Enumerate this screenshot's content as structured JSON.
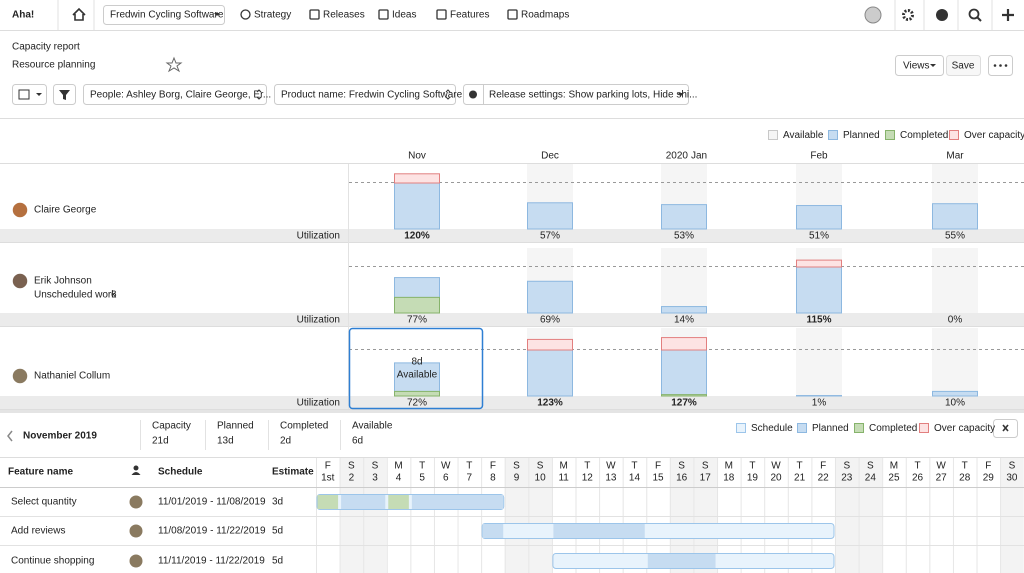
{
  "nav": {
    "logo": "Aha!",
    "workspace": "Fredwin Cycling Software",
    "items": [
      "Strategy",
      "Releases",
      "Ideas",
      "Features",
      "Roadmaps"
    ]
  },
  "header": {
    "breadcrumb": "Capacity report",
    "title": "Resource planning",
    "views": "Views",
    "save": "Save"
  },
  "filters": [
    "People: Ashley Borg, Claire George, Er...",
    "Product name: Fredwin Cycling Software",
    "Release settings: Show parking lots, Hide shi..."
  ],
  "capacity": {
    "legend": [
      "Available",
      "Planned",
      "Completed",
      "Over capacity"
    ],
    "year": "2020",
    "months": [
      "Nov",
      "Dec",
      "Jan",
      "Feb",
      "Mar"
    ],
    "utilization_label": "Utilization",
    "people": [
      {
        "name": "Claire George",
        "utilization": [
          {
            "value": 120,
            "label": "120%"
          },
          {
            "value": 57,
            "label": "57%"
          },
          {
            "value": 53,
            "label": "53%"
          },
          {
            "value": 51,
            "label": "51%"
          },
          {
            "value": 55,
            "label": "55%"
          }
        ],
        "completed": [
          0,
          0,
          0,
          0,
          0
        ]
      },
      {
        "name": "Erik Johnson",
        "unscheduled_label": "Unscheduled work",
        "unscheduled": 6,
        "utilization": [
          {
            "value": 77,
            "label": "77%"
          },
          {
            "value": 69,
            "label": "69%"
          },
          {
            "value": 14,
            "label": "14%"
          },
          {
            "value": 115,
            "label": "115%"
          },
          {
            "value": 0,
            "label": "0%"
          }
        ],
        "completed": [
          34,
          0,
          0,
          0,
          0
        ]
      },
      {
        "name": "Nathaniel Collum",
        "utilization": [
          {
            "value": 72,
            "label": "72%"
          },
          {
            "value": 123,
            "label": "123%"
          },
          {
            "value": 127,
            "label": "127%"
          },
          {
            "value": 1,
            "label": "1%"
          },
          {
            "value": 10,
            "label": "10%"
          }
        ],
        "completed": [
          10,
          0,
          3,
          0,
          0
        ]
      }
    ],
    "popup": {
      "days": "8d",
      "label": "Available"
    }
  },
  "detail": {
    "month": "November 2019",
    "stats": [
      {
        "label": "Capacity",
        "value": "21d"
      },
      {
        "label": "Planned",
        "value": "13d"
      },
      {
        "label": "Completed",
        "value": "2d"
      },
      {
        "label": "Available",
        "value": "6d"
      }
    ],
    "legend": [
      "Schedule",
      "Planned",
      "Completed",
      "Over capacity"
    ],
    "columns": [
      "Feature name",
      "Schedule",
      "Estimate"
    ],
    "days": [
      {
        "weekday": "F",
        "day": "1st"
      },
      {
        "weekday": "S",
        "day": 2
      },
      {
        "weekday": "S",
        "day": 3
      },
      {
        "weekday": "M",
        "day": 4
      },
      {
        "weekday": "T",
        "day": 5
      },
      {
        "weekday": "W",
        "day": 6
      },
      {
        "weekday": "T",
        "day": 7
      },
      {
        "weekday": "F",
        "day": 8
      },
      {
        "weekday": "S",
        "day": 9
      },
      {
        "weekday": "S",
        "day": 10
      },
      {
        "weekday": "M",
        "day": 11
      },
      {
        "weekday": "T",
        "day": 12
      },
      {
        "weekday": "W",
        "day": 13
      },
      {
        "weekday": "T",
        "day": 14
      },
      {
        "weekday": "F",
        "day": 15
      },
      {
        "weekday": "S",
        "day": 16
      },
      {
        "weekday": "S",
        "day": 17
      },
      {
        "weekday": "M",
        "day": 18
      },
      {
        "weekday": "T",
        "day": 19
      },
      {
        "weekday": "W",
        "day": 20
      },
      {
        "weekday": "T",
        "day": 21
      },
      {
        "weekday": "F",
        "day": 22
      },
      {
        "weekday": "S",
        "day": 23
      },
      {
        "weekday": "S",
        "day": 24
      },
      {
        "weekday": "M",
        "day": 25
      },
      {
        "weekday": "T",
        "day": 26
      },
      {
        "weekday": "W",
        "day": 27
      },
      {
        "weekday": "T",
        "day": 28
      },
      {
        "weekday": "F",
        "day": 29
      },
      {
        "weekday": "S",
        "day": 30
      }
    ],
    "features": [
      {
        "name": "Select quantity",
        "schedule": "11/01/2019 - 11/08/2019",
        "estimate": "3d",
        "segments": [
          {
            "from": 1,
            "to": 1,
            "kind": "completed"
          },
          {
            "from": 2,
            "to": 3,
            "kind": "planned"
          },
          {
            "from": 4,
            "to": 4,
            "kind": "completed"
          },
          {
            "from": 5,
            "to": 8,
            "kind": "planned"
          }
        ]
      },
      {
        "name": "Add reviews",
        "schedule": "11/08/2019 - 11/22/2019",
        "estimate": "5d",
        "segments": [
          {
            "from": 8,
            "to": 8,
            "kind": "planned"
          },
          {
            "from": 11,
            "to": 14,
            "kind": "planned"
          }
        ]
      },
      {
        "name": "Continue shopping",
        "schedule": "11/11/2019 - 11/22/2019",
        "estimate": "5d",
        "segments": [
          {
            "from": 15,
            "to": 17,
            "kind": "planned"
          }
        ]
      }
    ]
  }
}
